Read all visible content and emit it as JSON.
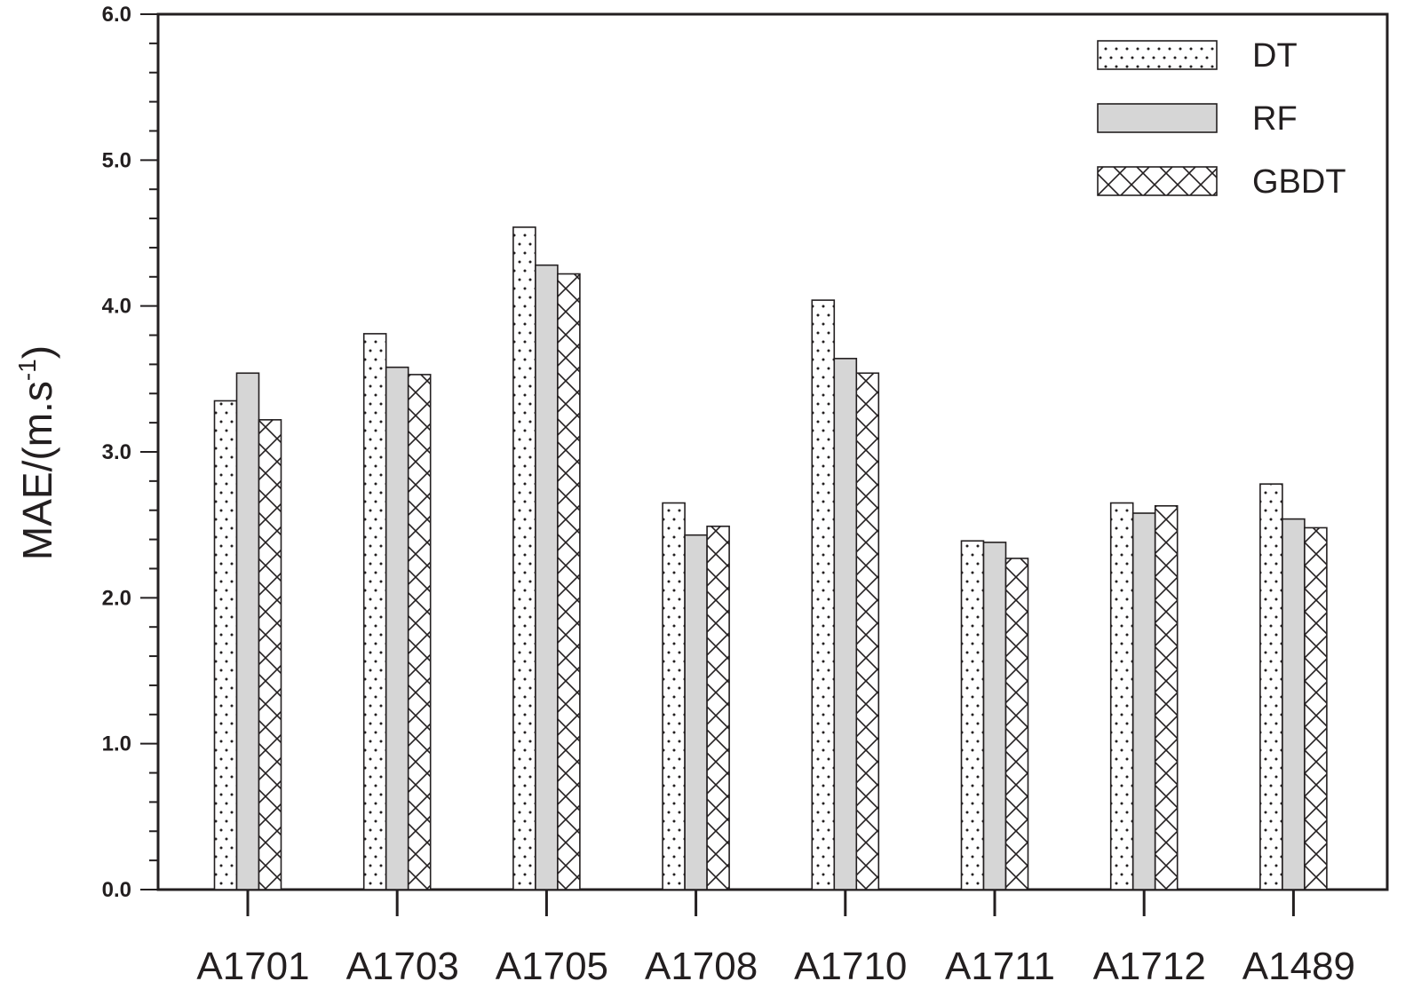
{
  "chart_data": {
    "type": "bar",
    "categories": [
      "A1701",
      "A1703",
      "A1705",
      "A1708",
      "A1710",
      "A1711",
      "A1712",
      "A1489"
    ],
    "series": [
      {
        "name": "DT",
        "values": [
          3.35,
          3.81,
          4.54,
          2.65,
          4.04,
          2.39,
          2.65,
          2.78
        ],
        "pattern": "dots",
        "color": "#ffffff"
      },
      {
        "name": "RF",
        "values": [
          3.54,
          3.58,
          4.28,
          2.43,
          3.64,
          2.38,
          2.58,
          2.54
        ],
        "pattern": "solid",
        "color": "#d6d6d6"
      },
      {
        "name": "GBDT",
        "values": [
          3.22,
          3.53,
          4.22,
          2.49,
          3.54,
          2.27,
          2.63,
          2.48
        ],
        "pattern": "crosshatch",
        "color": "#ffffff"
      }
    ],
    "ylim": [
      0.0,
      6.0
    ],
    "yticks": [
      "0.0",
      "1.0",
      "2.0",
      "3.0",
      "4.0",
      "5.0",
      "6.0"
    ],
    "ylabel": {
      "main": "MAE/(m.s",
      "superscript": "-1",
      "close": ")"
    },
    "xlabel": "",
    "title": "",
    "legend_position": "top-right",
    "grid": false,
    "axis_color": "#231f20"
  }
}
